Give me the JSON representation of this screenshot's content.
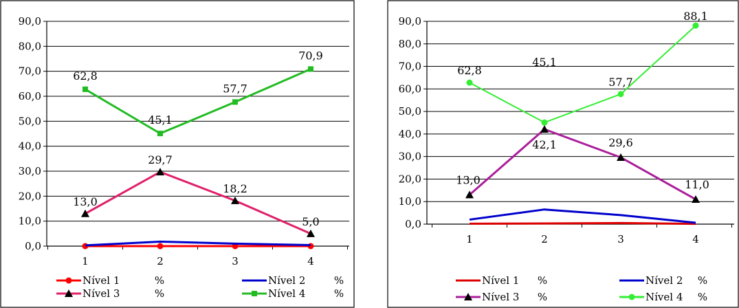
{
  "chart_data": [
    {
      "type": "line",
      "x": [
        "1",
        "2",
        "3",
        "4"
      ],
      "ylim": [
        0,
        90
      ],
      "yticks": [
        "0,0",
        "10,0",
        "20,0",
        "30,0",
        "40,0",
        "50,0",
        "60,0",
        "70,0",
        "80,0",
        "90,0"
      ],
      "grid": true,
      "legend_position": "bottom",
      "series": [
        {
          "name": "Nível 1",
          "unit": "%",
          "values": [
            0,
            0,
            0,
            0
          ],
          "color": "#ff0000",
          "marker": "circle"
        },
        {
          "name": "Nível 2",
          "unit": "%",
          "values": [
            0.3,
            1.8,
            1.0,
            0.4
          ],
          "color": "#0000cc",
          "marker": "none"
        },
        {
          "name": "Nível 3",
          "unit": "%",
          "values": [
            13.0,
            29.7,
            18.2,
            5.0
          ],
          "color": "#e0206a",
          "marker": "triangle",
          "labels": [
            "13,0",
            "29,7",
            "18,2",
            "5,0"
          ]
        },
        {
          "name": "Nível 4",
          "unit": "%",
          "values": [
            62.8,
            45.1,
            57.7,
            70.9
          ],
          "color": "#22bb22",
          "marker": "square",
          "labels": [
            "62,8",
            "45,1",
            "57,7",
            "70,9"
          ]
        }
      ]
    },
    {
      "type": "line",
      "x": [
        "1",
        "2",
        "3",
        "4"
      ],
      "ylim": [
        0,
        90
      ],
      "yticks": [
        "0,0",
        "10,0",
        "20,0",
        "30,0",
        "40,0",
        "50,0",
        "60,0",
        "70,0",
        "80,0",
        "90,0"
      ],
      "grid": true,
      "legend_position": "bottom",
      "series": [
        {
          "name": "Nível 1",
          "unit": "%",
          "values": [
            0.2,
            0.3,
            0.5,
            0.1
          ],
          "color": "#dd0000",
          "marker": "none"
        },
        {
          "name": "Nível 2",
          "unit": "%",
          "values": [
            2.0,
            6.5,
            4.0,
            0.6
          ],
          "color": "#0000cc",
          "marker": "none"
        },
        {
          "name": "Nível 3",
          "unit": "%",
          "values": [
            13.0,
            42.1,
            29.6,
            11.0
          ],
          "color": "#aa1e9a",
          "marker": "triangle",
          "labels": [
            "13,0",
            "42,1",
            "29,6",
            "11,0"
          ]
        },
        {
          "name": "Nível 4",
          "unit": "%",
          "values": [
            62.8,
            45.1,
            57.7,
            88.1
          ],
          "color": "#33ee33",
          "marker": "circle",
          "labels": [
            "62,8",
            "45,1",
            "57,7",
            "88,1"
          ]
        }
      ]
    }
  ]
}
